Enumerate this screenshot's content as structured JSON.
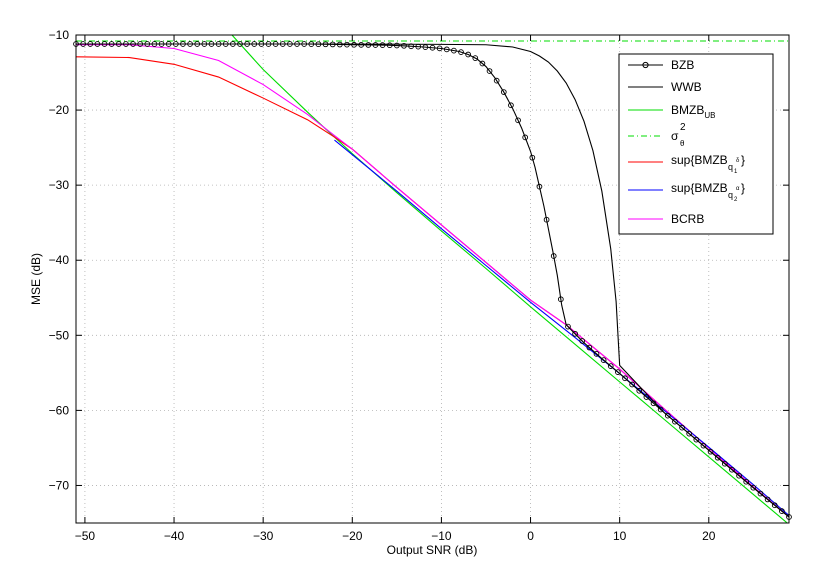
{
  "chart_data": {
    "type": "line",
    "xlabel": "Output SNR (dB)",
    "ylabel": "MSE (dB)",
    "xlim": [
      -51,
      29
    ],
    "ylim": [
      -75,
      -10
    ],
    "x_ticks": [
      -50,
      -40,
      -30,
      -20,
      -10,
      0,
      10,
      20
    ],
    "y_ticks": [
      -10,
      -20,
      -30,
      -40,
      -50,
      -60,
      -70
    ],
    "x_tick_labels": [
      "−50",
      "−40",
      "−30",
      "−20",
      "−10",
      "0",
      "10",
      "20"
    ],
    "y_tick_labels": [
      "−10",
      "−20",
      "−30",
      "−40",
      "−50",
      "−60",
      "−70"
    ],
    "grid": true,
    "legend_position": "top-right",
    "series": [
      {
        "name": "BZB",
        "color": "#000000",
        "marker": "circle",
        "x": [
          -51,
          -45,
          -40,
          -35,
          -30,
          -25,
          -20,
          -16,
          -14,
          -12,
          -10,
          -8,
          -7,
          -6,
          -5,
          -4,
          -3,
          -2,
          -1,
          0,
          0.5,
          1,
          1.5,
          2,
          2.5,
          3,
          3.5,
          4,
          6,
          8,
          10,
          15,
          20,
          25,
          29
        ],
        "y": [
          -11.2,
          -11.2,
          -11.2,
          -11.2,
          -11.2,
          -11.2,
          -11.3,
          -11.35,
          -11.45,
          -11.6,
          -11.8,
          -12.2,
          -12.6,
          -13.2,
          -14.2,
          -15.7,
          -17.6,
          -19.8,
          -22.4,
          -25.5,
          -27.6,
          -30.2,
          -32.8,
          -35.8,
          -38.8,
          -42,
          -46,
          -48.6,
          -51,
          -53.1,
          -55.1,
          -60.3,
          -65.3,
          -70.3,
          -74.2
        ]
      },
      {
        "name": "WWB",
        "color": "#000000",
        "x": [
          -51,
          -40,
          -30,
          -20,
          -10,
          -5,
          -2,
          0,
          1,
          2,
          3,
          4,
          5,
          6,
          7,
          8,
          9,
          9.6,
          10,
          15,
          20,
          25,
          29
        ],
        "y": [
          -11.2,
          -11.2,
          -11.2,
          -11.2,
          -11.25,
          -11.3,
          -11.6,
          -12.2,
          -12.8,
          -13.6,
          -14.8,
          -16.4,
          -18.6,
          -21.5,
          -25.4,
          -30.8,
          -38.5,
          -45.5,
          -54,
          -60.3,
          -65.3,
          -70.3,
          -74.2
        ]
      },
      {
        "name": "BMZB_UB",
        "color": "#00dd00",
        "x": [
          -33.5,
          -30,
          -25,
          -20,
          -15,
          -10,
          -5,
          0,
          5,
          10,
          15,
          20,
          25,
          29
        ],
        "y": [
          -10,
          -14.6,
          -20.3,
          -25.8,
          -31,
          -36.1,
          -41.1,
          -46.2,
          -51.2,
          -56.2,
          -61.2,
          -66.2,
          -71.2,
          -75.2
        ]
      },
      {
        "name": "σθ 2",
        "color": "#00dd00",
        "dash": "dash-dot",
        "x": [
          -51,
          29
        ],
        "y": [
          -10.8,
          -10.8
        ]
      },
      {
        "name": "sup{BMZB q1 δ}",
        "color": "#ff0000",
        "x": [
          -51,
          -45,
          -40,
          -35,
          -30,
          -25,
          -22,
          -20,
          -15,
          -10,
          -5,
          0,
          4,
          10,
          15,
          20,
          25,
          29
        ],
        "y": [
          -12.9,
          -13,
          -13.9,
          -15.6,
          -18.4,
          -21.3,
          -23.6,
          -25.2,
          -30.3,
          -35.3,
          -40.3,
          -45.3,
          -48.6,
          -54.5,
          -59.8,
          -65,
          -70.2,
          -74.2
        ]
      },
      {
        "name": "sup{BMZB q2 α}",
        "color": "#0000ff",
        "x": [
          -22,
          -15,
          -10,
          -5,
          0,
          5,
          10,
          15,
          20,
          25,
          29
        ],
        "y": [
          -24,
          -30.8,
          -35.8,
          -40.7,
          -45.6,
          -50.3,
          -55.1,
          -60,
          -64.9,
          -69.9,
          -74
        ]
      },
      {
        "name": "BCRB",
        "color": "#ff00ff",
        "x": [
          -51,
          -45,
          -40,
          -35,
          -30,
          -25,
          -22,
          -20,
          -15,
          -10,
          -5,
          0,
          4,
          10,
          15,
          20,
          25,
          29
        ],
        "y": [
          -11.3,
          -11.3,
          -11.8,
          -13.4,
          -16.6,
          -20.6,
          -23.4,
          -25.2,
          -30.3,
          -35.3,
          -40.3,
          -45.3,
          -48.6,
          -54.5,
          -59.8,
          -65,
          -70.2,
          -74.2
        ]
      }
    ],
    "legend": {
      "bzb": "BZB",
      "wwb": "WWB",
      "bmzb_main": "BMZB",
      "bmzb_sub": "UB",
      "sigma_main": "σ",
      "sigma_sub": "θ",
      "sigma_sup": "2",
      "sup1_main": "sup{BMZB",
      "sup1_sub": "q",
      "sup1_subsub": "1",
      "sup1_sup": "δ",
      "sup1_close": "}",
      "sup2_main": "sup{BMZB",
      "sup2_sub": "q",
      "sup2_subsub": "2",
      "sup2_sup": "α",
      "sup2_close": "}",
      "bcrb": "BCRB"
    }
  }
}
